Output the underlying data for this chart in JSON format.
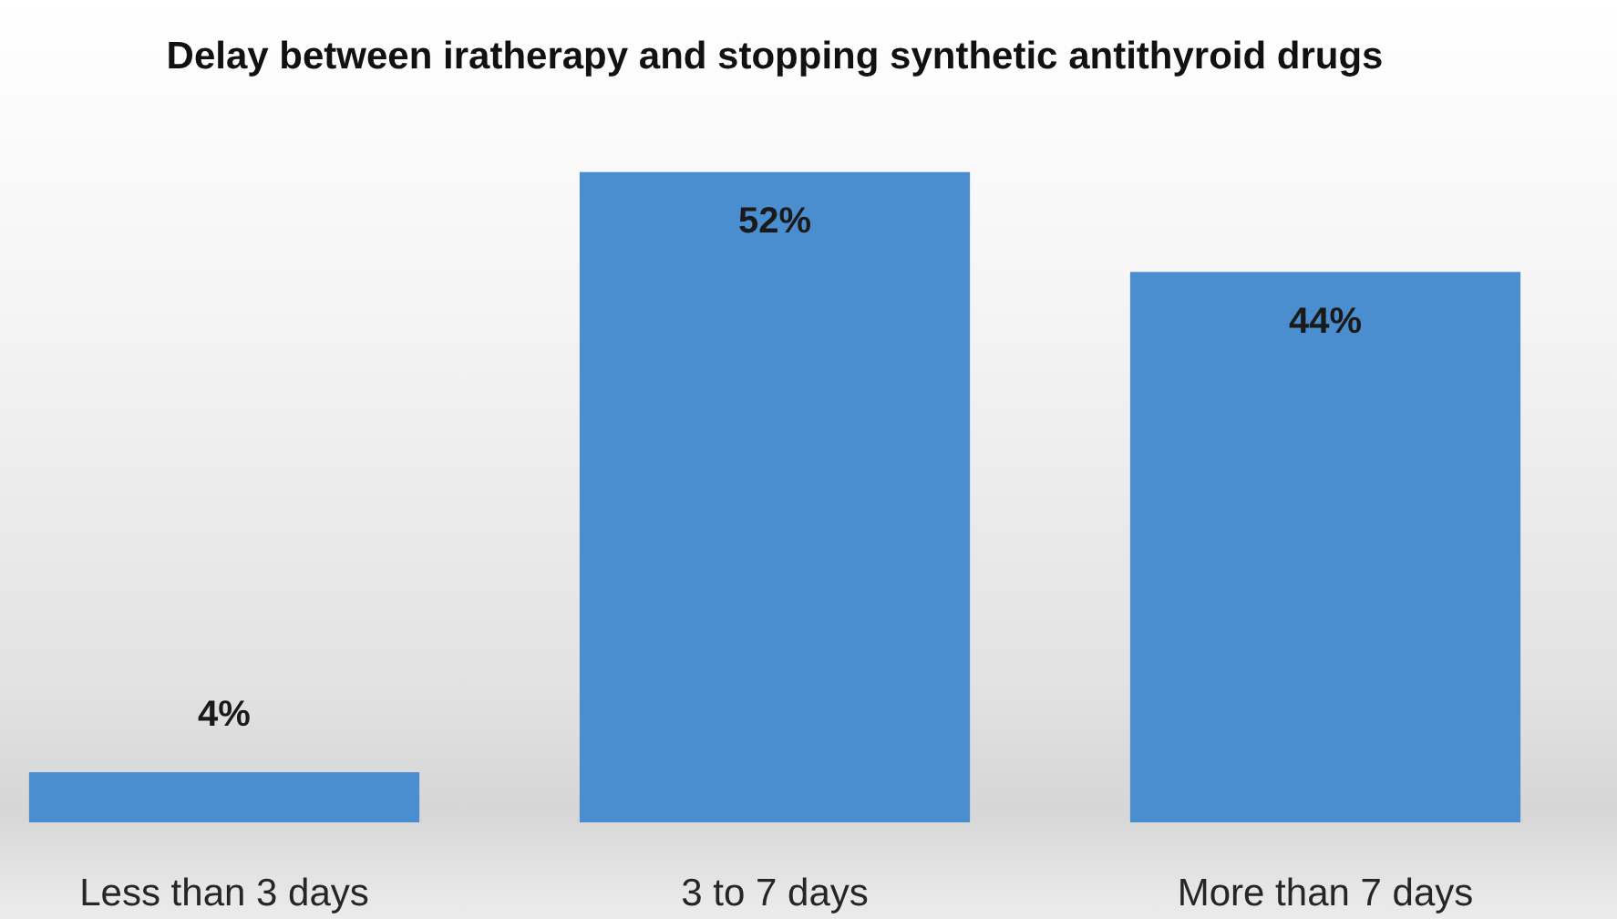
{
  "chart_data": {
    "type": "bar",
    "title": "Delay between iratherapy and stopping synthetic antithyroid drugs",
    "categories": [
      "Less than 3 days",
      "3 to 7 days",
      "More than 7 days"
    ],
    "values": [
      4,
      52,
      44
    ],
    "value_labels": [
      "4%",
      "52%",
      "44%"
    ],
    "color": "#4a8ed0"
  }
}
